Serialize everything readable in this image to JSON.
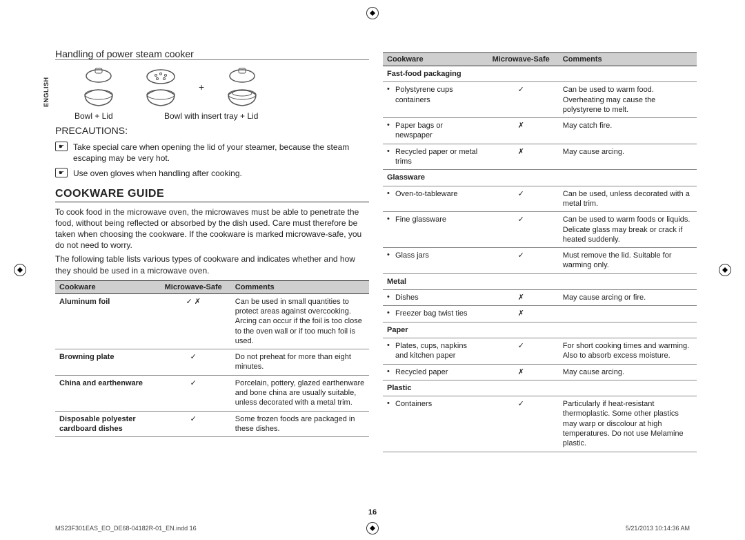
{
  "language_tab": "ENGLISH",
  "left": {
    "handling_title": "Handling of power steam cooker",
    "caption_bowl_lid": "Bowl + Lid",
    "caption_bowl_insert": "Bowl with insert tray + Lid",
    "plus": "+",
    "precautions_label": "PRECAUTIONS:",
    "precautions": [
      "Take special care when opening the lid of your steamer, because the steam escaping may be very hot.",
      "Use oven gloves when handling after cooking."
    ],
    "guide_title": "COOKWARE GUIDE",
    "guide_para1": "To cook food in the microwave oven, the microwaves must be able to penetrate the food, without being reflected or absorbed by the dish used. Care must therefore be taken when choosing the cookware. If the cookware is marked microwave-safe, you do not need to worry.",
    "guide_para2": "The following table lists various types of cookware and indicates whether and how they should be used in a microwave oven.",
    "table": {
      "columns": [
        "Cookware",
        "Microwave-Safe",
        "Comments"
      ],
      "rows": [
        {
          "name": "Aluminum foil",
          "safe": "✓ ✗",
          "comments": "Can be used in small quantities to protect areas against overcooking. Arcing can occur if the foil is too close to the oven wall or if too much foil is used."
        },
        {
          "name": "Browning plate",
          "safe": "✓",
          "comments": "Do not preheat for more than eight minutes."
        },
        {
          "name": "China and earthenware",
          "safe": "✓",
          "comments": "Porcelain, pottery, glazed earthenware and bone china are usually suitable, unless decorated with a metal trim."
        },
        {
          "name": "Disposable polyester cardboard dishes",
          "safe": "✓",
          "comments": "Some frozen foods are packaged in these dishes."
        }
      ]
    }
  },
  "right": {
    "table": {
      "columns": [
        "Cookware",
        "Microwave-Safe",
        "Comments"
      ],
      "groups": [
        {
          "header": "Fast-food packaging",
          "rows": [
            {
              "name": "Polystyrene cups containers",
              "safe": "✓",
              "comments": "Can be used to warm food. Overheating may cause the polystyrene to melt."
            },
            {
              "name": "Paper bags or newspaper",
              "safe": "✗",
              "comments": "May catch fire."
            },
            {
              "name": "Recycled paper or metal trims",
              "safe": "✗",
              "comments": "May cause arcing."
            }
          ]
        },
        {
          "header": "Glassware",
          "rows": [
            {
              "name": "Oven-to-tableware",
              "safe": "✓",
              "comments": "Can be used, unless decorated with a metal trim."
            },
            {
              "name": "Fine glassware",
              "safe": "✓",
              "comments": "Can be used to warm foods or liquids. Delicate glass may break or crack if heated suddenly."
            },
            {
              "name": "Glass jars",
              "safe": "✓",
              "comments": "Must remove the lid. Suitable for warming only."
            }
          ]
        },
        {
          "header": "Metal",
          "rows": [
            {
              "name": "Dishes",
              "safe": "✗",
              "comments": "May cause arcing or fire."
            },
            {
              "name": "Freezer bag twist ties",
              "safe": "✗",
              "comments": ""
            }
          ]
        },
        {
          "header": "Paper",
          "rows": [
            {
              "name": "Plates, cups, napkins and kitchen paper",
              "safe": "✓",
              "comments": "For short cooking times and warming. Also to absorb excess moisture."
            },
            {
              "name": "Recycled paper",
              "safe": "✗",
              "comments": "May cause arcing."
            }
          ]
        },
        {
          "header": "Plastic",
          "rows": [
            {
              "name": "Containers",
              "safe": "✓",
              "comments": "Particularly if heat-resistant thermoplastic. Some other plastics may warp or discolour at high temperatures. Do not use Melamine plastic."
            }
          ]
        }
      ]
    }
  },
  "page_number": "16",
  "footer_left": "MS23F301EAS_EO_DE68-04182R-01_EN.indd   16",
  "footer_right": "5/21/2013   10:14:36 AM"
}
